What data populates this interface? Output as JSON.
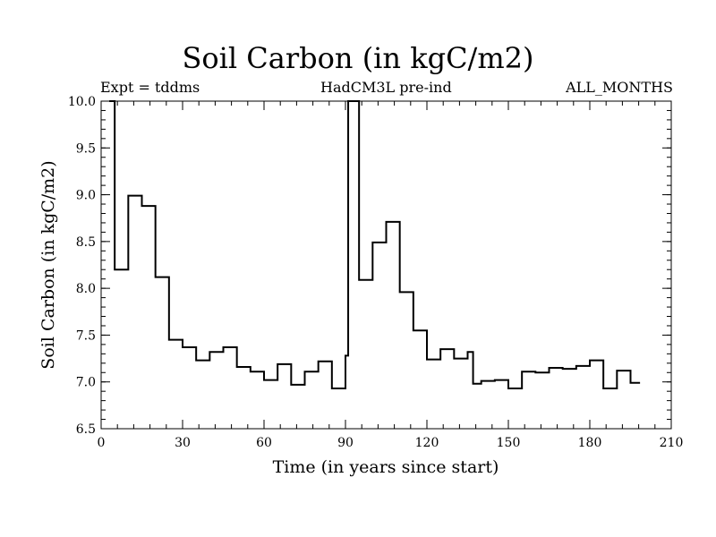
{
  "chart_data": {
    "type": "line",
    "title": "Soil Carbon (in kgC/m2)",
    "subtitle_left": "Expt = tddms",
    "subtitle_center": "HadCM3L pre-ind",
    "subtitle_right": "ALL_MONTHS",
    "xlabel": "Time (in years since start)",
    "ylabel": "Soil Carbon (in kgC/m2)",
    "xlim": [
      0,
      210
    ],
    "ylim": [
      6.5,
      10.0
    ],
    "xticks": [
      "0",
      "30",
      "60",
      "90",
      "120",
      "150",
      "180",
      "210"
    ],
    "yticks": [
      "6.5",
      "7.0",
      "7.5",
      "8.0",
      "8.5",
      "9.0",
      "9.5",
      "10.0"
    ],
    "series": [
      {
        "style": "step",
        "x": [
          3,
          5,
          10,
          15,
          20,
          25,
          30,
          35,
          40,
          45,
          50,
          55,
          60,
          65,
          70,
          75,
          80,
          85,
          90,
          91,
          95,
          100,
          105,
          110,
          115,
          120,
          125,
          130,
          135,
          137,
          140,
          145,
          150,
          155,
          160,
          165,
          170,
          175,
          180,
          185,
          190,
          195,
          198
        ],
        "y": [
          10.0,
          8.2,
          8.99,
          8.88,
          8.12,
          7.45,
          7.37,
          7.23,
          7.32,
          7.37,
          7.16,
          7.11,
          7.02,
          7.19,
          6.97,
          7.11,
          7.22,
          6.93,
          7.28,
          10.0,
          8.09,
          8.49,
          8.71,
          7.96,
          7.55,
          7.24,
          7.35,
          7.25,
          7.32,
          6.98,
          7.01,
          7.02,
          6.93,
          7.11,
          7.1,
          7.15,
          7.14,
          7.17,
          7.23,
          6.93,
          7.12,
          6.99,
          6.99
        ]
      }
    ]
  }
}
